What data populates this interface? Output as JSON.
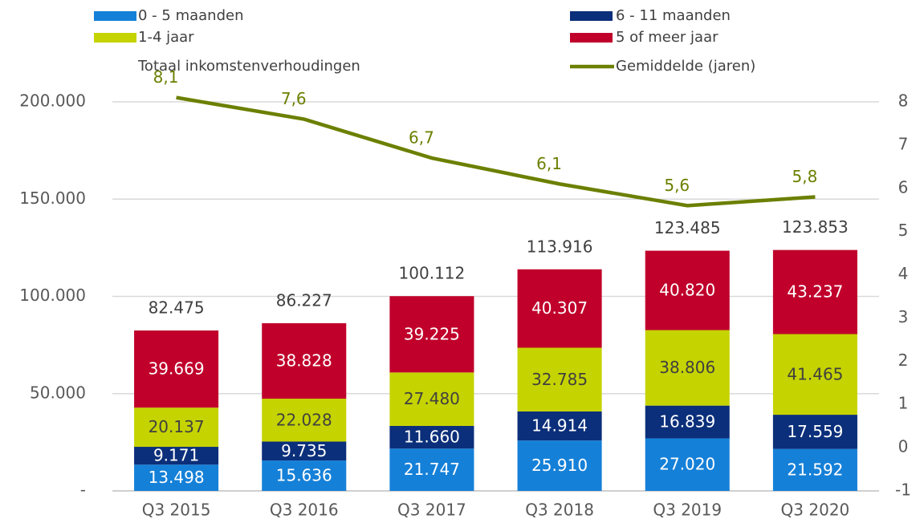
{
  "chart_data": {
    "type": "bar",
    "stacked": true,
    "categories": [
      "Q3 2015",
      "Q3 2016",
      "Q3 2017",
      "Q3 2018",
      "Q3 2019",
      "Q3 2020"
    ],
    "series": [
      {
        "name": "0 - 5 maanden",
        "type": "bar",
        "color": "#1580d8",
        "label_color": "#ffffff",
        "values": [
          13498,
          15636,
          21747,
          25910,
          27020,
          21592
        ],
        "value_labels": [
          "13.498",
          "15.636",
          "21.747",
          "25.910",
          "27.020",
          "21.592"
        ]
      },
      {
        "name": "6 - 11 maanden",
        "type": "bar",
        "color": "#0b2f7a",
        "label_color": "#ffffff",
        "values": [
          9171,
          9735,
          11660,
          14914,
          16839,
          17559
        ],
        "value_labels": [
          "9.171",
          "9.735",
          "11.660",
          "14.914",
          "16.839",
          "17.559"
        ]
      },
      {
        "name": "1-4 jaar",
        "type": "bar",
        "color": "#c5d300",
        "label_color": "#404040",
        "values": [
          20137,
          22028,
          27480,
          32785,
          38806,
          41465
        ],
        "value_labels": [
          "20.137",
          "22.028",
          "27.480",
          "32.785",
          "38.806",
          "41.465"
        ]
      },
      {
        "name": "5 of meer jaar",
        "type": "bar",
        "color": "#c0002b",
        "label_color": "#ffffff",
        "values": [
          39669,
          38828,
          39225,
          40307,
          40820,
          43237
        ],
        "value_labels": [
          "39.669",
          "38.828",
          "39.225",
          "40.307",
          "40.820",
          "43.237"
        ]
      },
      {
        "name": "Totaal inkomstenverhoudingen",
        "type": "total",
        "label_color": "#404040",
        "values": [
          82475,
          86227,
          100112,
          113916,
          123485,
          123853
        ],
        "value_labels": [
          "82.475",
          "86.227",
          "100.112",
          "113.916",
          "123.485",
          "123.853"
        ]
      },
      {
        "name": "Gemiddelde (jaren)",
        "type": "line",
        "axis": "y2",
        "color": "#6b8000",
        "label_color": "#6b8000",
        "values": [
          8.1,
          7.6,
          6.7,
          6.1,
          5.6,
          5.8
        ],
        "value_labels": [
          "8,1",
          "7,6",
          "6,7",
          "6,1",
          "5,6",
          "5,8"
        ]
      }
    ],
    "ylim": [
      0,
      200000
    ],
    "yticks": [
      {
        "value": 0,
        "label": "-"
      },
      {
        "value": 50000,
        "label": "50.000"
      },
      {
        "value": 100000,
        "label": "100.000"
      },
      {
        "value": 150000,
        "label": "150.000"
      },
      {
        "value": 200000,
        "label": "200.000"
      }
    ],
    "y2lim": [
      -1,
      8
    ],
    "y2ticks": [
      -1,
      0,
      1,
      2,
      3,
      4,
      5,
      6,
      7,
      8
    ],
    "grid": true
  }
}
